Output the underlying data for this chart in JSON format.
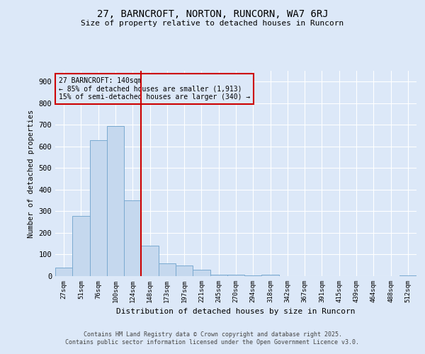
{
  "title": "27, BARNCROFT, NORTON, RUNCORN, WA7 6RJ",
  "subtitle": "Size of property relative to detached houses in Runcorn",
  "xlabel": "Distribution of detached houses by size in Runcorn",
  "ylabel": "Number of detached properties",
  "background_color": "#dce8f8",
  "bar_color": "#c5d8ee",
  "bar_edge_color": "#7aaad0",
  "grid_color": "#ffffff",
  "categories": [
    "27sqm",
    "51sqm",
    "76sqm",
    "100sqm",
    "124sqm",
    "148sqm",
    "173sqm",
    "197sqm",
    "221sqm",
    "245sqm",
    "270sqm",
    "294sqm",
    "318sqm",
    "342sqm",
    "367sqm",
    "391sqm",
    "415sqm",
    "439sqm",
    "464sqm",
    "488sqm",
    "512sqm"
  ],
  "values": [
    40,
    280,
    630,
    695,
    350,
    140,
    60,
    50,
    30,
    8,
    8,
    2,
    8,
    0,
    0,
    0,
    0,
    0,
    0,
    0,
    3
  ],
  "ylim": [
    0,
    950
  ],
  "yticks": [
    0,
    100,
    200,
    300,
    400,
    500,
    600,
    700,
    800,
    900
  ],
  "vline_color": "#cc0000",
  "vline_x": 4.5,
  "annotation_text": "27 BARNCROFT: 140sqm\n← 85% of detached houses are smaller (1,913)\n15% of semi-detached houses are larger (340) →",
  "annotation_box_color": "#cc0000",
  "footer_line1": "Contains HM Land Registry data © Crown copyright and database right 2025.",
  "footer_line2": "Contains public sector information licensed under the Open Government Licence v3.0.",
  "figsize": [
    6.0,
    5.0
  ],
  "dpi": 100
}
